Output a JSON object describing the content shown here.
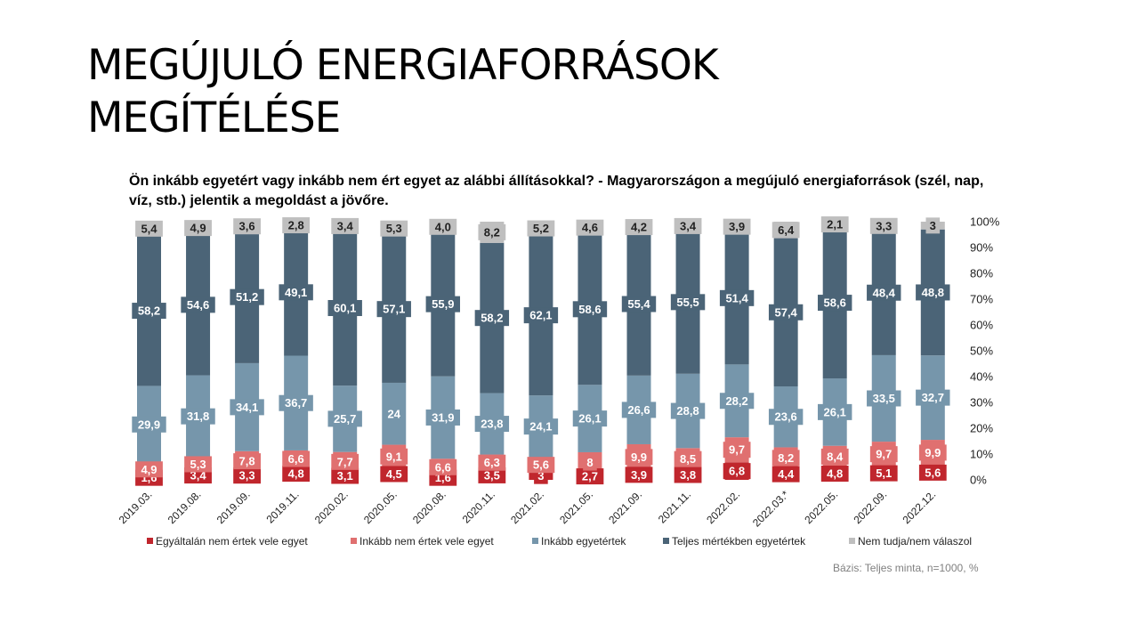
{
  "slide": {
    "title_line1": "MEGÚJULÓ ENERGIAFORRÁSOK",
    "title_line2": "MEGÍTÉLÉSE",
    "question": "Ön inkább egyetért vagy inkább nem ért egyet az alábbi állításokkal? - Magyarországon a megújuló energiaforrások (szél, nap, víz, stb.) jelentik a megoldást a jövőre.",
    "source_note": "Bázis: Teljes minta, n=1000, %"
  },
  "chart_data": {
    "type": "bar",
    "stacked": true,
    "percent_stacked": true,
    "categories": [
      "2019.03.",
      "2019.08.",
      "2019.09.",
      "2019.11.",
      "2020.02.",
      "2020.05.",
      "2020.08.",
      "2020.11.",
      "2021.02.",
      "2021.05.",
      "2021.09.",
      "2021.11.",
      "2022.02.",
      "2022.03.*",
      "2022.05.",
      "2022.09.",
      "2022.12."
    ],
    "series": [
      {
        "name": "Egyáltalán nem értek vele egyet",
        "color": "#c0262d",
        "label_bg": "#c0262d",
        "values": [
          1.6,
          3.4,
          3.3,
          4.8,
          3.1,
          4.5,
          1.6,
          3.5,
          3,
          2.7,
          3.9,
          3.8,
          6.8,
          4.4,
          4.8,
          5.1,
          5.6
        ],
        "labels": [
          "1,6",
          "3,4",
          "3,3",
          "4,8",
          "3,1",
          "4,5",
          "1,6",
          "3,5",
          "3",
          "2,7",
          "3,9",
          "3,8",
          "6,8",
          "4,4",
          "4,8",
          "5,1",
          "5,6"
        ]
      },
      {
        "name": "Inkább nem értek vele egyet",
        "color": "#e07070",
        "label_bg": "#e07070",
        "values": [
          4.9,
          5.3,
          7.8,
          6.6,
          7.7,
          9.1,
          6.6,
          6.3,
          5.6,
          8,
          9.9,
          8.5,
          9.7,
          8.2,
          8.4,
          9.7,
          9.9
        ],
        "labels": [
          "4,9",
          "5,3",
          "7,8",
          "6,6",
          "7,7",
          "9,1",
          "6,6",
          "6,3",
          "5,6",
          "8",
          "9,9",
          "8,5",
          "9,7",
          "8,2",
          "8,4",
          "9,7",
          "9,9"
        ]
      },
      {
        "name": "Inkább egyetértek",
        "color": "#7696ab",
        "label_bg": "#7696ab",
        "values": [
          29.9,
          31.8,
          34.1,
          36.7,
          25.7,
          24,
          31.9,
          23.8,
          24.1,
          26.1,
          26.6,
          28.8,
          28.2,
          23.6,
          26.1,
          33.5,
          32.7
        ],
        "labels": [
          "29,9",
          "31,8",
          "34,1",
          "36,7",
          "25,7",
          "24",
          "31,9",
          "23,8",
          "24,1",
          "26,1",
          "26,6",
          "28,8",
          "28,2",
          "23,6",
          "26,1",
          "33,5",
          "32,7"
        ]
      },
      {
        "name": "Teljes mértékben egyetértek",
        "color": "#4b6477",
        "label_bg": "#4b6477",
        "values": [
          58.2,
          54.6,
          51.2,
          49.1,
          60.1,
          57.1,
          55.9,
          58.2,
          62.1,
          58.6,
          55.4,
          55.5,
          51.4,
          57.4,
          58.6,
          48.4,
          48.8
        ],
        "labels": [
          "58,2",
          "54,6",
          "51,2",
          "49,1",
          "60,1",
          "57,1",
          "55,9",
          "58,2",
          "62,1",
          "58,6",
          "55,4",
          "55,5",
          "51,4",
          "57,4",
          "58,6",
          "48,4",
          "48,8"
        ]
      },
      {
        "name": "Nem tudja/nem válaszol",
        "color": "#bfbfbf",
        "label_bg": "#bfbfbf",
        "values": [
          5.4,
          4.9,
          3.6,
          2.8,
          3.4,
          5.3,
          4.0,
          8.2,
          5.2,
          4.6,
          4.2,
          3.4,
          3.9,
          6.4,
          2.1,
          3.3,
          3
        ],
        "labels": [
          "5,4",
          "4,9",
          "3,6",
          "2,8",
          "3,4",
          "5,3",
          "4,0",
          "8,2",
          "5,2",
          "4,6",
          "4,2",
          "3,4",
          "3,9",
          "6,4",
          "2,1",
          "3,3",
          "3"
        ]
      }
    ],
    "y_ticks": [
      "0%",
      "10%",
      "20%",
      "30%",
      "40%",
      "50%",
      "60%",
      "70%",
      "80%",
      "90%",
      "100%"
    ],
    "ylim": [
      0,
      100
    ],
    "y_axis_side": "right",
    "grid": false,
    "legend_position": "bottom"
  }
}
